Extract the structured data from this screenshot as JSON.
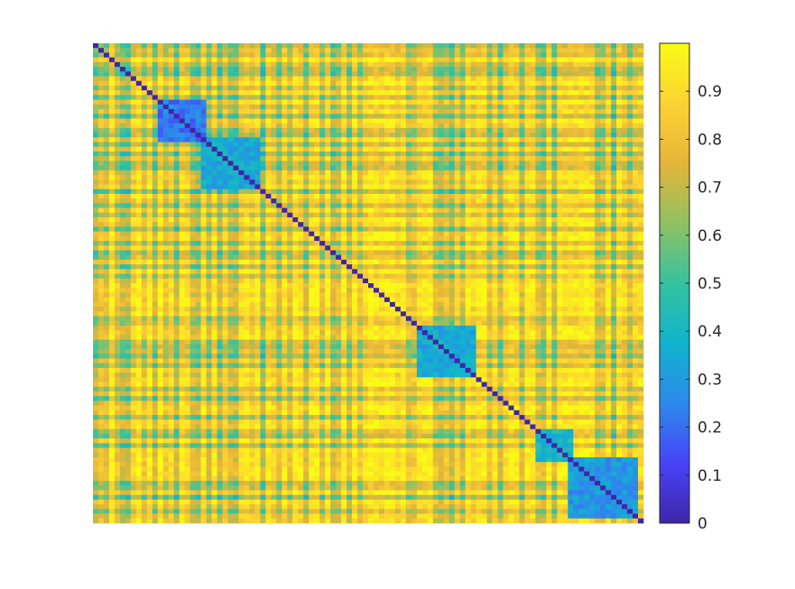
{
  "chart_data": {
    "type": "heatmap",
    "title": "",
    "xlabel": "",
    "ylabel": "",
    "matrix_size": 102,
    "diagonal_value": 0,
    "value_range": [
      0,
      1
    ],
    "colormap": "parula",
    "axes_visible": false,
    "grid": false,
    "colorbar": {
      "position": "right",
      "ticks": [
        0,
        0.1,
        0.2,
        0.3,
        0.4,
        0.5,
        0.6,
        0.7,
        0.8,
        0.9
      ],
      "tick_labels": [
        "0",
        "0.1",
        "0.2",
        "0.3",
        "0.4",
        "0.5",
        "0.6",
        "0.7",
        "0.8",
        "0.9"
      ]
    },
    "colormap_stops": [
      "#3e26a8",
      "#4743f8",
      "#2d8aec",
      "#10b3cc",
      "#35c29f",
      "#8fc162",
      "#e4b539",
      "#fcd333",
      "#f9fb15"
    ]
  }
}
